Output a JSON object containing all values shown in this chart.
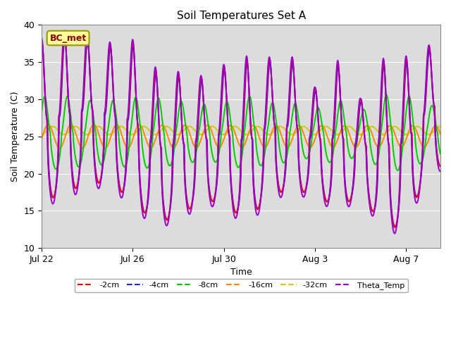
{
  "title": "Soil Temperatures Set A",
  "xlabel": "Time",
  "ylabel": "Soil Temperature (C)",
  "ylim": [
    10,
    40
  ],
  "total_days": 17.5,
  "x_tick_labels": [
    "Jul 22",
    "Jul 26",
    "Jul 30",
    "Aug 3",
    "Aug 7"
  ],
  "x_tick_positions": [
    0,
    4,
    8,
    12,
    16
  ],
  "bg_color": "#dcdcdc",
  "fig_color": "#ffffff",
  "grid_color": "#ffffff",
  "colors": {
    "-2cm": "#ff0000",
    "-4cm": "#2222dd",
    "-8cm": "#00cc00",
    "-16cm": "#ff8800",
    "-32cm": "#cccc00",
    "Theta_Temp": "#9900cc"
  },
  "lw": 1.4,
  "annotation_text": "BC_met",
  "annotation_color": "#8b0000",
  "annotation_bg": "#ffff99",
  "annotation_border": "#999900"
}
